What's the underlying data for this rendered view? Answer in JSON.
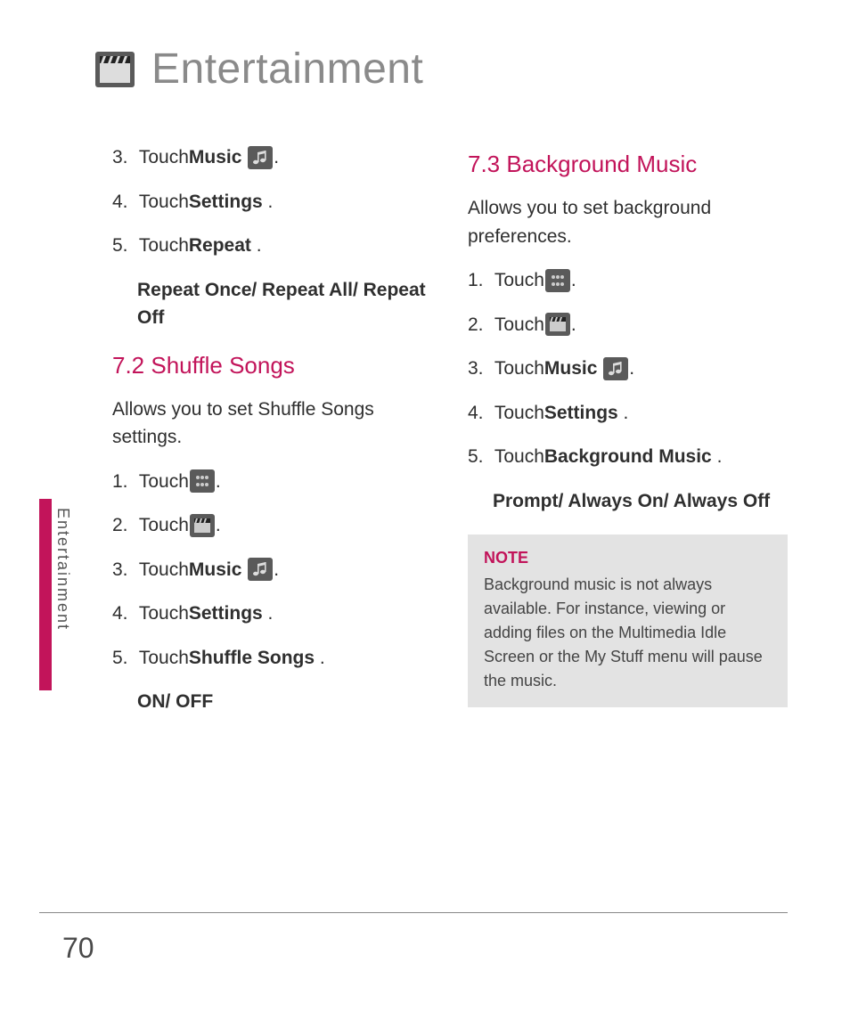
{
  "title": "Entertainment",
  "side_label": "Entertainment",
  "page_number": "70",
  "colors": {
    "accent": "#c2145a",
    "note_bg": "#e3e3e3",
    "icon_bg": "#5a5a5a",
    "title_gray": "#8a8a8a"
  },
  "left_col": {
    "steps_top": [
      {
        "num": "3.",
        "pre": "Touch ",
        "bold": "Music",
        "icon": "music",
        "post": "."
      },
      {
        "num": "4.",
        "pre": "Touch ",
        "bold": "Settings",
        "post": "."
      },
      {
        "num": "5.",
        "pre": "Touch ",
        "bold": "Repeat",
        "post": "."
      }
    ],
    "indent_top": "Repeat Once/ Repeat All/ Repeat Off",
    "section": "7.2 Shuffle Songs",
    "intro": "Allows you to set Shuffle Songs settings.",
    "steps_bottom": [
      {
        "num": "1.",
        "pre": "Touch ",
        "icon": "grid",
        "post": "."
      },
      {
        "num": "2.",
        "pre": "Touch ",
        "icon": "clapper",
        "post": "."
      },
      {
        "num": "3.",
        "pre": "Touch ",
        "bold": "Music",
        "icon": "music",
        "post": "."
      },
      {
        "num": "4.",
        "pre": "Touch ",
        "bold": "Settings",
        "post": "."
      },
      {
        "num": "5.",
        "pre": "Touch ",
        "bold": "Shuffle Songs",
        "post": "."
      }
    ],
    "indent_bottom": "ON/ OFF"
  },
  "right_col": {
    "section": "7.3 Background Music",
    "intro": "Allows you to set background preferences.",
    "steps": [
      {
        "num": "1.",
        "pre": "Touch ",
        "icon": "grid",
        "post": "."
      },
      {
        "num": "2.",
        "pre": "Touch ",
        "icon": "clapper",
        "post": "."
      },
      {
        "num": "3.",
        "pre": "Touch ",
        "bold": "Music",
        "icon": "music",
        "post": "."
      },
      {
        "num": "4.",
        "pre": "Touch ",
        "bold": "Settings",
        "post": "."
      },
      {
        "num": "5.",
        "pre": "Touch ",
        "bold": "Background Music",
        "post": "."
      }
    ],
    "indent": "Prompt/ Always On/ Always Off",
    "note": {
      "title": "NOTE",
      "body": "Background music is not always available. For instance, viewing or adding files on the Multimedia Idle Screen or the My Stuff menu will pause the music."
    }
  }
}
